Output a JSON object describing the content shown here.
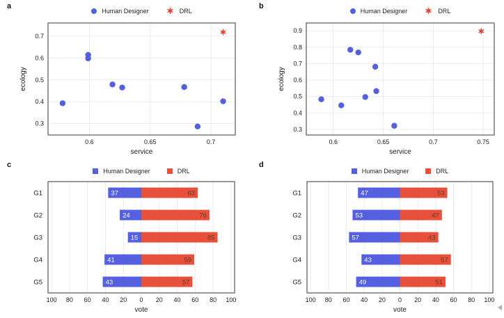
{
  "colors": {
    "human": "#5560E0",
    "drl": "#E8432F",
    "bar_drl": "#E8503A",
    "bar_label_light": "#FFFFFF",
    "bar_label_dark": "#5C3C30",
    "grid": "#E8ECF2",
    "border": "#6E6E6E",
    "text": "#1A1A1A"
  },
  "chart_data": [
    {
      "panel_label": "a",
      "type": "scatter",
      "xlabel": "service",
      "ylabel": "ecology",
      "xlim": [
        0.566,
        0.72
      ],
      "ylim": [
        0.248,
        0.76
      ],
      "xticks": [
        0.6,
        0.65,
        0.7
      ],
      "xtick_labels": [
        "0.6",
        "0.65",
        "0.7"
      ],
      "yticks": [
        0.3,
        0.4,
        0.5,
        0.6,
        0.7
      ],
      "ytick_labels": [
        "0.3",
        "0.4",
        "0.5",
        "0.6",
        "0.7"
      ],
      "grid": true,
      "legend_position": "top-center",
      "series": [
        {
          "name": "Human Designer",
          "marker": "circle",
          "color_key": "human",
          "points": [
            [
              0.578,
              0.393
            ],
            [
              0.599,
              0.614
            ],
            [
              0.599,
              0.598
            ],
            [
              0.619,
              0.479
            ],
            [
              0.627,
              0.465
            ],
            [
              0.678,
              0.467
            ],
            [
              0.689,
              0.287
            ],
            [
              0.71,
              0.402
            ]
          ]
        },
        {
          "name": "DRL",
          "marker": "star",
          "color_key": "drl",
          "points": [
            [
              0.71,
              0.718
            ]
          ]
        }
      ]
    },
    {
      "panel_label": "b",
      "type": "scatter",
      "xlabel": "service",
      "ylabel": "ecology",
      "xlim": [
        0.573,
        0.761
      ],
      "ylim": [
        0.266,
        0.947
      ],
      "xticks": [
        0.6,
        0.65,
        0.7,
        0.75
      ],
      "xtick_labels": [
        "0.6",
        "0.65",
        "0.7",
        "0.75"
      ],
      "yticks": [
        0.3,
        0.4,
        0.5,
        0.6,
        0.7,
        0.8,
        0.9
      ],
      "ytick_labels": [
        "0.3",
        "0.4",
        "0.5",
        "0.6",
        "0.7",
        "0.8",
        "0.9"
      ],
      "grid": true,
      "legend_position": "top-center",
      "series": [
        {
          "name": "Human Designer",
          "marker": "circle",
          "color_key": "human",
          "points": [
            [
              0.588,
              0.483
            ],
            [
              0.608,
              0.446
            ],
            [
              0.617,
              0.784
            ],
            [
              0.625,
              0.768
            ],
            [
              0.632,
              0.497
            ],
            [
              0.643,
              0.533
            ],
            [
              0.642,
              0.681
            ],
            [
              0.661,
              0.322
            ]
          ]
        },
        {
          "name": "DRL",
          "marker": "star",
          "color_key": "drl",
          "points": [
            [
              0.748,
              0.897
            ]
          ]
        }
      ]
    },
    {
      "panel_label": "c",
      "type": "diverging_bar",
      "xlabel": "vote",
      "categories": [
        "G1",
        "G2",
        "G3",
        "G4",
        "G5"
      ],
      "xlim": [
        -104,
        104
      ],
      "xticks": [
        -100,
        -80,
        -60,
        -40,
        -20,
        0,
        20,
        40,
        60,
        80,
        100
      ],
      "xtick_labels": [
        "100",
        "80",
        "60",
        "40",
        "20",
        "0",
        "20",
        "40",
        "60",
        "80",
        "100"
      ],
      "grid": true,
      "legend_position": "top-center",
      "series": [
        {
          "name": "Human Designer",
          "marker": "square",
          "side": "left",
          "color_key": "human",
          "values": [
            37,
            24,
            15,
            41,
            43
          ]
        },
        {
          "name": "DRL",
          "marker": "square",
          "side": "right",
          "color_key": "bar_drl",
          "values": [
            63,
            76,
            85,
            59,
            57
          ]
        }
      ]
    },
    {
      "panel_label": "d",
      "type": "diverging_bar",
      "xlabel": "vote",
      "categories": [
        "G1",
        "G2",
        "G3",
        "G4",
        "G5"
      ],
      "xlim": [
        -104,
        104
      ],
      "xticks": [
        -100,
        -80,
        -60,
        -40,
        -20,
        0,
        20,
        40,
        60,
        80,
        100
      ],
      "xtick_labels": [
        "100",
        "80",
        "60",
        "40",
        "20",
        "0",
        "20",
        "40",
        "60",
        "80",
        "100"
      ],
      "grid": true,
      "legend_position": "top-center",
      "series": [
        {
          "name": "Human Designer",
          "marker": "square",
          "side": "left",
          "color_key": "human",
          "values": [
            47,
            53,
            57,
            43,
            49
          ]
        },
        {
          "name": "DRL",
          "marker": "square",
          "side": "right",
          "color_key": "bar_drl",
          "values": [
            53,
            47,
            43,
            57,
            51
          ]
        }
      ]
    }
  ]
}
